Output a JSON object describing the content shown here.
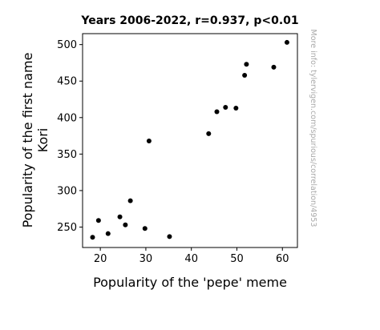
{
  "chart_data": {
    "type": "scatter",
    "title": "Years 2006-2022, r=0.937, p<0.01",
    "xlabel": "Popularity of the 'pepe' meme",
    "ylabel_lines": [
      "Popularity of the first name",
      "Kori"
    ],
    "watermark": "More info: tylervigen.com/spurious/correlation/4953",
    "xlim": [
      16.1,
      63.3
    ],
    "ylim": [
      222,
      515
    ],
    "xticks": [
      20,
      30,
      40,
      50,
      60
    ],
    "yticks": [
      250,
      300,
      350,
      400,
      450,
      500
    ],
    "marker_color": "#000000",
    "grid": false,
    "points": [
      {
        "x": 18.3,
        "y": 236
      },
      {
        "x": 19.6,
        "y": 259
      },
      {
        "x": 21.7,
        "y": 241
      },
      {
        "x": 24.3,
        "y": 264
      },
      {
        "x": 25.5,
        "y": 253
      },
      {
        "x": 26.6,
        "y": 286
      },
      {
        "x": 29.8,
        "y": 248
      },
      {
        "x": 30.7,
        "y": 368
      },
      {
        "x": 35.2,
        "y": 237
      },
      {
        "x": 43.8,
        "y": 378
      },
      {
        "x": 45.6,
        "y": 408
      },
      {
        "x": 47.5,
        "y": 414
      },
      {
        "x": 49.8,
        "y": 413
      },
      {
        "x": 51.7,
        "y": 458
      },
      {
        "x": 52.1,
        "y": 473
      },
      {
        "x": 58.1,
        "y": 469
      },
      {
        "x": 61.0,
        "y": 503
      }
    ]
  }
}
